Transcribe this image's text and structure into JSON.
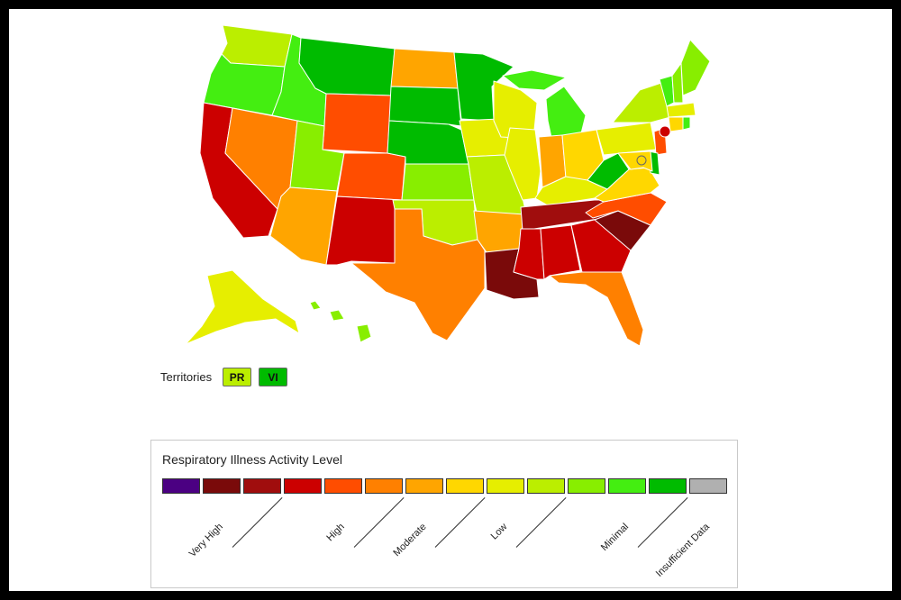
{
  "colors": {
    "page_border": "#000000",
    "background": "#ffffff",
    "level_1": "#4b0082",
    "level_2": "#7a0a0a",
    "level_3": "#a00d0d",
    "level_4": "#cc0000",
    "level_5": "#ff4d00",
    "level_6": "#ff8000",
    "level_7": "#ffa500",
    "level_8": "#ffd700",
    "level_9": "#e6ee00",
    "level_10": "#bbee00",
    "level_11": "#88ee00",
    "level_12": "#44ee11",
    "level_13": "#00bb00",
    "insufficient": "#b0b0b0"
  },
  "map": {
    "states": [
      {
        "code": "WA",
        "level": 10
      },
      {
        "code": "OR",
        "level": 12
      },
      {
        "code": "CA",
        "level": 4
      },
      {
        "code": "NV",
        "level": 6
      },
      {
        "code": "ID",
        "level": 12
      },
      {
        "code": "MT",
        "level": 13
      },
      {
        "code": "WY",
        "level": 5
      },
      {
        "code": "UT",
        "level": 11
      },
      {
        "code": "AZ",
        "level": 7
      },
      {
        "code": "CO",
        "level": 5
      },
      {
        "code": "NM",
        "level": 4
      },
      {
        "code": "ND",
        "level": 7
      },
      {
        "code": "SD",
        "level": 13
      },
      {
        "code": "NE",
        "level": 13
      },
      {
        "code": "KS",
        "level": 11
      },
      {
        "code": "OK",
        "level": 10
      },
      {
        "code": "TX",
        "level": 6
      },
      {
        "code": "MN",
        "level": 13
      },
      {
        "code": "IA",
        "level": 9
      },
      {
        "code": "MO",
        "level": 10
      },
      {
        "code": "AR",
        "level": 7
      },
      {
        "code": "LA",
        "level": 2
      },
      {
        "code": "WI",
        "level": 9
      },
      {
        "code": "IL",
        "level": 9
      },
      {
        "code": "MI",
        "level": 12
      },
      {
        "code": "IN",
        "level": 7
      },
      {
        "code": "OH",
        "level": 8
      },
      {
        "code": "KY",
        "level": 9
      },
      {
        "code": "TN",
        "level": 3
      },
      {
        "code": "MS",
        "level": 4
      },
      {
        "code": "AL",
        "level": 4
      },
      {
        "code": "GA",
        "level": 4
      },
      {
        "code": "FL",
        "level": 6
      },
      {
        "code": "SC",
        "level": 2
      },
      {
        "code": "NC",
        "level": 5
      },
      {
        "code": "VA",
        "level": 8
      },
      {
        "code": "WV",
        "level": 13
      },
      {
        "code": "PA",
        "level": 9
      },
      {
        "code": "NY",
        "level": 10
      },
      {
        "code": "VT",
        "level": 12
      },
      {
        "code": "NH",
        "level": 11
      },
      {
        "code": "ME",
        "level": 11
      },
      {
        "code": "MA",
        "level": 9
      },
      {
        "code": "CT",
        "level": 8
      },
      {
        "code": "RI",
        "level": 12
      },
      {
        "code": "NJ",
        "level": 5
      },
      {
        "code": "DE",
        "level": 13
      },
      {
        "code": "MD",
        "level": 8
      },
      {
        "code": "DC",
        "level": 8
      },
      {
        "code": "NYC",
        "level": 4
      },
      {
        "code": "AK",
        "level": 9
      },
      {
        "code": "HI",
        "level": 11
      }
    ]
  },
  "territories": {
    "label": "Territories",
    "items": [
      {
        "code": "PR",
        "level": 10
      },
      {
        "code": "VI",
        "level": 13
      }
    ]
  },
  "legend": {
    "title": "Respiratory Illness Activity Level",
    "levels": [
      "level_1",
      "level_2",
      "level_3",
      "level_4",
      "level_5",
      "level_6",
      "level_7",
      "level_8",
      "level_9",
      "level_10",
      "level_11",
      "level_12",
      "level_13",
      "insufficient"
    ],
    "labels": {
      "very_high": "Very High",
      "high": "High",
      "moderate": "Moderate",
      "low": "Low",
      "minimal": "Minimal",
      "insufficient": "Insufficient Data"
    }
  }
}
